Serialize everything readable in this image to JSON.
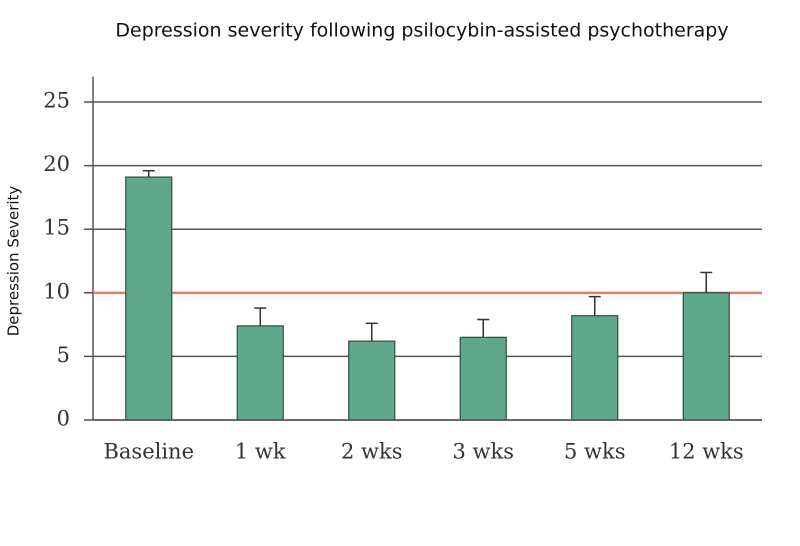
{
  "chart_data": {
    "type": "bar",
    "title": "Depression severity following psilocybin-assisted psychotherapy",
    "y_label": "Depression Severity",
    "categories": [
      "Baseline",
      "1 wk",
      "2 wks",
      "3 wks",
      "5 wks",
      "12 wks"
    ],
    "values": [
      19.1,
      7.4,
      6.2,
      6.5,
      8.2,
      10.0
    ],
    "errors": [
      0.5,
      1.4,
      1.4,
      1.4,
      1.5,
      1.6
    ],
    "color": "#5fa88c",
    "ylim": [
      0,
      27
    ],
    "yticks": [
      0,
      5,
      10,
      15,
      20,
      25
    ],
    "grid": true,
    "reference_line": {
      "value": 10,
      "color": "#d9826b"
    }
  }
}
